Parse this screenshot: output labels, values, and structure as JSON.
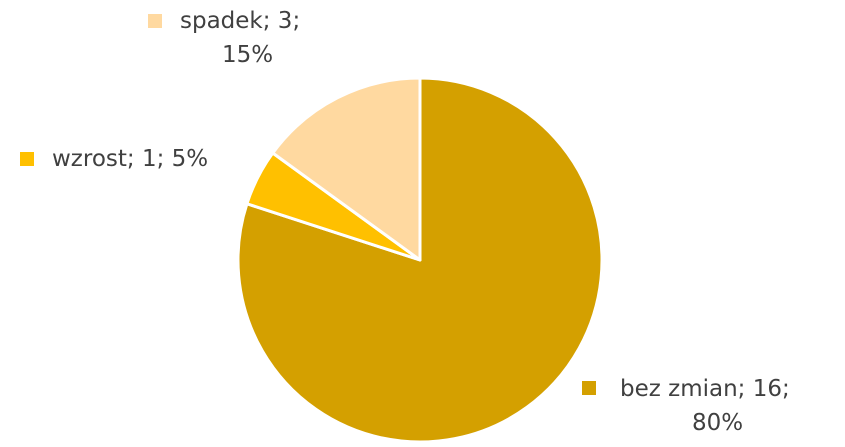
{
  "chart_data": {
    "type": "pie",
    "slices": [
      {
        "category": "bez zmian",
        "value": 16,
        "percent": "80%",
        "color": "#D4A000"
      },
      {
        "category": "wzrost",
        "value": 1,
        "percent": "5%",
        "color": "#FFC000"
      },
      {
        "category": "spadek",
        "value": 3,
        "percent": "15%",
        "color": "#FFD9A0"
      }
    ],
    "start_angle_deg": 0,
    "direction": "clockwise",
    "labels": {
      "bez_zmian": {
        "line1": "bez zmian; 16;",
        "line2": "80%"
      },
      "wzrost": {
        "line1": "wzrost; 1; 5%"
      },
      "spadek": {
        "line1": "spadek; 3;",
        "line2": "15%"
      }
    }
  }
}
